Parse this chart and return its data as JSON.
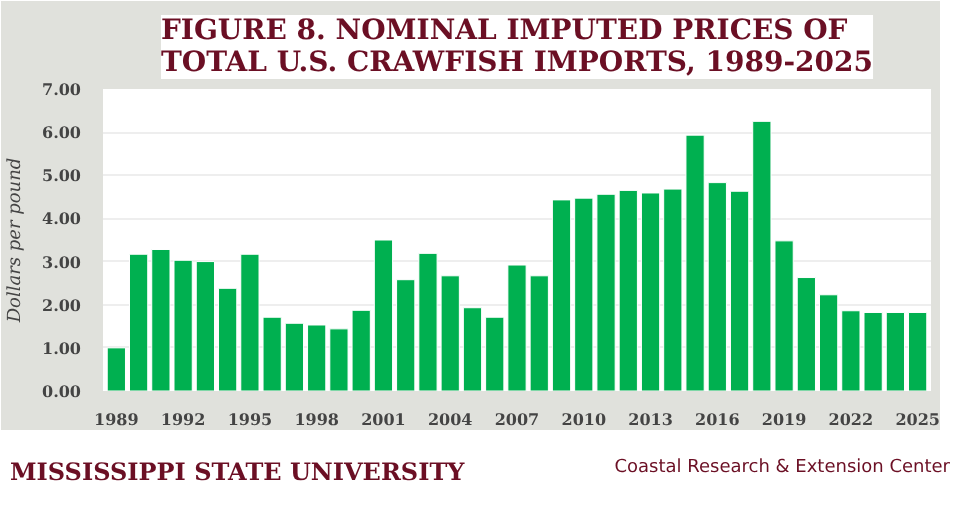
{
  "chart_data": {
    "type": "bar",
    "title": "FIGURE 8. NOMINAL IMPUTED PRICES OF TOTAL U.S. CRAWFISH IMPORTS, 1989-2025",
    "ylabel": "Dollars per pound",
    "categories": [
      "1989",
      null,
      null,
      "1992",
      null,
      null,
      "1995",
      null,
      null,
      "1998",
      null,
      null,
      "2001",
      null,
      null,
      "2004",
      null,
      null,
      "2007",
      null,
      null,
      "2010",
      null,
      null,
      "2013",
      null,
      null,
      "2016",
      null,
      null,
      "2019",
      null,
      null,
      "2022",
      null,
      null,
      "2025"
    ],
    "values": [
      1.0,
      3.17,
      3.28,
      3.03,
      3.0,
      2.38,
      3.17,
      1.71,
      1.57,
      1.53,
      1.44,
      1.87,
      3.5,
      2.58,
      3.19,
      2.67,
      1.93,
      1.71,
      2.92,
      2.67,
      4.43,
      4.47,
      4.56,
      4.65,
      4.59,
      4.68,
      5.93,
      4.83,
      4.63,
      6.25,
      3.48,
      2.63,
      2.23,
      1.86,
      1.82,
      1.82,
      1.82
    ],
    "color": "#00b050",
    "ylim": [
      0,
      7
    ],
    "yticks": [
      {
        "value": 0,
        "label": "0.00"
      },
      {
        "value": 1,
        "label": "1.00"
      },
      {
        "value": 2,
        "label": "2.00"
      },
      {
        "value": 3,
        "label": "3.00"
      },
      {
        "value": 4,
        "label": "4.00"
      },
      {
        "value": 5,
        "label": "5.00"
      },
      {
        "value": 6,
        "label": "6.00"
      },
      {
        "value": 7,
        "label": "7.00"
      }
    ],
    "grid": "y",
    "annotations": [
      "MISSISSIPPI STATE UNIVERSITY",
      "Coastal Research & Extension Center"
    ]
  }
}
